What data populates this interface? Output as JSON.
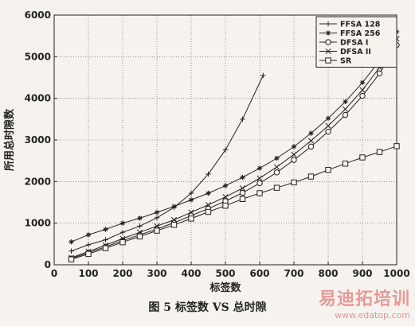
{
  "caption": "图 5 标签数 VS 总时隙",
  "watermark": {
    "name": "易迪拓培训",
    "url": "www.edatop.com"
  },
  "chart_data": {
    "type": "line",
    "title": "",
    "xlabel": "标签数",
    "ylabel": "所用总时隙数",
    "xlim": [
      0,
      1000
    ],
    "ylim": [
      0,
      6000
    ],
    "xticks": [
      0,
      100,
      200,
      300,
      400,
      500,
      600,
      700,
      800,
      900,
      1000
    ],
    "yticks": [
      0,
      1000,
      2000,
      3000,
      4000,
      5000,
      6000
    ],
    "grid": true,
    "legend_position": "top-right",
    "series": [
      {
        "name": "FFSA 128",
        "marker": "plus",
        "x": [
          50,
          100,
          150,
          200,
          250,
          300,
          350,
          400,
          450,
          500,
          550,
          610
        ],
        "y": [
          330,
          480,
          600,
          780,
          930,
          1130,
          1380,
          1720,
          2180,
          2760,
          3500,
          4550
        ]
      },
      {
        "name": "FFSA 256",
        "marker": "star",
        "x": [
          50,
          100,
          150,
          200,
          250,
          300,
          350,
          400,
          450,
          500,
          550,
          600,
          650,
          700,
          750,
          800,
          850,
          900,
          950,
          1000
        ],
        "y": [
          550,
          720,
          850,
          1000,
          1120,
          1260,
          1400,
          1560,
          1720,
          1900,
          2100,
          2320,
          2560,
          2840,
          3160,
          3520,
          3920,
          4380,
          4900,
          5600
        ]
      },
      {
        "name": "DFSA I",
        "marker": "circle",
        "x": [
          50,
          100,
          150,
          200,
          250,
          300,
          350,
          400,
          450,
          500,
          550,
          600,
          650,
          700,
          750,
          800,
          850,
          900,
          950,
          1000
        ],
        "y": [
          150,
          290,
          430,
          580,
          720,
          860,
          1010,
          1180,
          1350,
          1530,
          1730,
          1960,
          2220,
          2520,
          2840,
          3200,
          3600,
          4060,
          4600,
          5280
        ]
      },
      {
        "name": "DFSA II",
        "marker": "x",
        "x": [
          50,
          100,
          150,
          200,
          250,
          300,
          350,
          400,
          450,
          500,
          550,
          600,
          650,
          700,
          750,
          800,
          850,
          900,
          950,
          1000
        ],
        "y": [
          170,
          320,
          470,
          630,
          780,
          930,
          1080,
          1260,
          1440,
          1630,
          1840,
          2080,
          2350,
          2650,
          2980,
          3340,
          3740,
          4200,
          4740,
          5430
        ]
      },
      {
        "name": "SR",
        "marker": "square",
        "x": [
          50,
          100,
          150,
          200,
          250,
          300,
          350,
          400,
          450,
          500,
          550,
          600,
          650,
          700,
          750,
          800,
          850,
          900,
          950,
          1000
        ],
        "y": [
          130,
          260,
          400,
          540,
          680,
          820,
          960,
          1110,
          1270,
          1420,
          1580,
          1720,
          1850,
          1980,
          2120,
          2280,
          2430,
          2580,
          2710,
          2850
        ]
      }
    ]
  }
}
